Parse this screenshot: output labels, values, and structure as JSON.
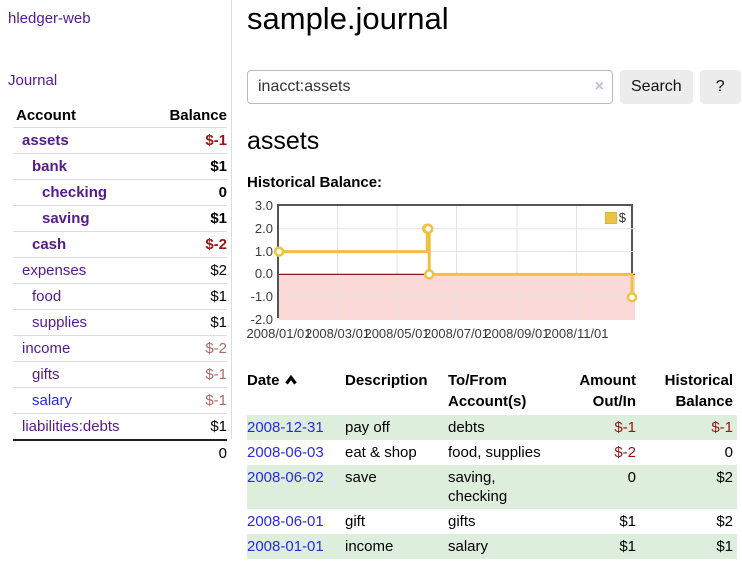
{
  "app": {
    "brand": "hledger-web"
  },
  "sidebar": {
    "journal_link": "Journal",
    "accounts": {
      "header_account": "Account",
      "header_balance": "Balance",
      "rows": [
        {
          "name": "assets",
          "indent": 0,
          "bold": true,
          "balance": "$-1",
          "neg": "strong",
          "link_style": "visited"
        },
        {
          "name": "bank",
          "indent": 1,
          "bold": true,
          "balance": "$1",
          "neg": "none",
          "link_style": "visited"
        },
        {
          "name": "checking",
          "indent": 2,
          "bold": true,
          "balance": "0",
          "neg": "none",
          "link_style": "visited"
        },
        {
          "name": "saving",
          "indent": 2,
          "bold": true,
          "balance": "$1",
          "neg": "none",
          "link_style": "visited"
        },
        {
          "name": "cash",
          "indent": 1,
          "bold": true,
          "balance": "$-2",
          "neg": "strong",
          "link_style": "visited"
        },
        {
          "name": "expenses",
          "indent": 0,
          "bold": false,
          "balance": "$2",
          "neg": "none",
          "link_style": "visited"
        },
        {
          "name": "food",
          "indent": 1,
          "bold": false,
          "balance": "$1",
          "neg": "none",
          "link_style": "visited"
        },
        {
          "name": "supplies",
          "indent": 1,
          "bold": false,
          "balance": "$1",
          "neg": "none",
          "link_style": "visited"
        },
        {
          "name": "income",
          "indent": 0,
          "bold": false,
          "balance": "$-2",
          "neg": "soft",
          "link_style": "visited"
        },
        {
          "name": "gifts",
          "indent": 1,
          "bold": false,
          "balance": "$-1",
          "neg": "soft",
          "link_style": "visited"
        },
        {
          "name": "salary",
          "indent": 1,
          "bold": false,
          "balance": "$-1",
          "neg": "soft",
          "link_style": "unvisited"
        },
        {
          "name": "liabilities:debts",
          "indent": 0,
          "bold": false,
          "balance": "$1",
          "neg": "none",
          "link_style": "visited"
        }
      ],
      "total": "0"
    }
  },
  "main": {
    "title": "sample.journal",
    "search": {
      "value": "inacct:assets",
      "clear_icon": "×",
      "search_button": "Search",
      "help_button": "?"
    },
    "account_heading": "assets",
    "chart_label": "Historical Balance:",
    "register": {
      "headers": {
        "date": "Date",
        "description": "Description",
        "tofrom_line1": "To/From",
        "tofrom_line2": "Account(s)",
        "amount_line1": "Amount",
        "amount_line2": "Out/In",
        "balance_line1": "Historical",
        "balance_line2": "Balance"
      },
      "rows": [
        {
          "date": "2008-12-31",
          "description": "pay off",
          "accounts": "debts",
          "amount": "$-1",
          "amount_neg": true,
          "balance": "$-1",
          "balance_neg": true
        },
        {
          "date": "2008-06-03",
          "description": "eat & shop",
          "accounts": "food, supplies",
          "amount": "$-2",
          "amount_neg": true,
          "balance": "0",
          "balance_neg": false
        },
        {
          "date": "2008-06-02",
          "description": "save",
          "accounts": "saving, checking",
          "amount": "0",
          "amount_neg": false,
          "balance": "$2",
          "balance_neg": false
        },
        {
          "date": "2008-06-01",
          "description": "gift",
          "accounts": "gifts",
          "amount": "$1",
          "amount_neg": false,
          "balance": "$2",
          "balance_neg": false
        },
        {
          "date": "2008-01-01",
          "description": "income",
          "accounts": "salary",
          "amount": "$1",
          "amount_neg": false,
          "balance": "$1",
          "balance_neg": false
        }
      ]
    }
  },
  "chart_data": {
    "type": "line",
    "step": true,
    "title": "Historical Balance:",
    "series": [
      {
        "name": "$",
        "color": "#EDC240",
        "points": [
          [
            "2008-01-01",
            1
          ],
          [
            "2008-06-01",
            2
          ],
          [
            "2008-06-02",
            2
          ],
          [
            "2008-06-03",
            0
          ],
          [
            "2008-12-31",
            -1
          ]
        ]
      }
    ],
    "ylim": [
      -2,
      3
    ],
    "yticks": [
      "3.0",
      "2.0",
      "1.0",
      "0.0",
      "-1.0",
      "-2.0"
    ],
    "xticks": [
      "2008/01/01",
      "2008/03/01",
      "2008/05/01",
      "2008/07/01",
      "2008/09/01",
      "2008/11/01"
    ],
    "x_range": [
      "2008-01-01",
      "2008-12-31"
    ],
    "grid": true,
    "legend": "$",
    "legend_position": "top-right",
    "negative_region_fill": "#fbd9d9",
    "zero_line_color": "#8b1a1a",
    "gridline_color": "#e3e3e3",
    "border_color": "#545454"
  },
  "colors": {
    "link_visited": "#551a8b",
    "link_unvisited": "#2a2ae0",
    "negative_strong": "#991414",
    "negative_soft": "#b06a6a",
    "row_green": "#ddeedd",
    "chart_line": "#EDC240",
    "button_bg": "#ececec"
  }
}
